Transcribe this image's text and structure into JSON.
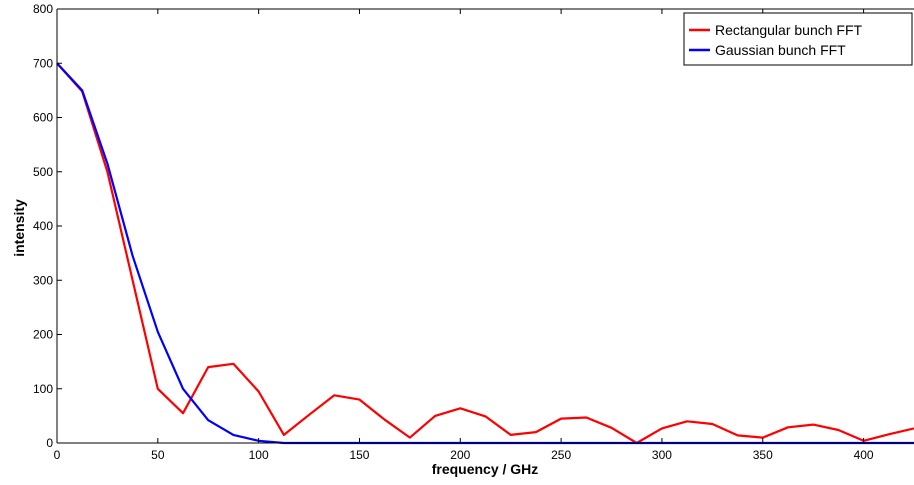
{
  "chart_data": {
    "type": "line",
    "title": "",
    "xlabel": "frequency / GHz",
    "ylabel": "intensity",
    "xlim": [
      0,
      425
    ],
    "ylim": [
      0,
      800
    ],
    "xticks": [
      0,
      50,
      100,
      150,
      200,
      250,
      300,
      350,
      400
    ],
    "yticks": [
      0,
      100,
      200,
      300,
      400,
      500,
      600,
      700,
      800
    ],
    "grid": false,
    "legend": "top-right",
    "series": [
      {
        "name": "Rectangular bunch FFT",
        "color": "#ff0000",
        "x": [
          0,
          12.5,
          25,
          37.5,
          50,
          62.5,
          75,
          87.5,
          100,
          112.5,
          125,
          137.5,
          150,
          162.5,
          175,
          187.5,
          200,
          212.5,
          225,
          237.5,
          250,
          262.5,
          275,
          287.5,
          300,
          312.5,
          325,
          337.5,
          350,
          362.5,
          375,
          387.5,
          400,
          412.5,
          425
        ],
        "values": [
          700,
          648,
          500,
          300,
          100,
          55,
          140,
          146,
          95,
          15,
          52,
          88,
          80,
          43,
          10,
          50,
          64,
          49,
          15,
          20,
          45,
          47,
          28,
          0,
          27,
          40,
          35,
          14,
          10,
          29,
          34,
          24,
          4,
          16,
          27
        ]
      },
      {
        "name": "Gaussian bunch FFT",
        "color": "#0000ff",
        "x": [
          0,
          12.5,
          25,
          37.5,
          50,
          62.5,
          75,
          87.5,
          100,
          112.5,
          125,
          150,
          200,
          250,
          300,
          350,
          400,
          425
        ],
        "values": [
          700,
          650,
          515,
          345,
          205,
          100,
          42,
          15,
          4,
          0,
          0,
          0,
          0,
          0,
          0,
          0,
          0,
          0
        ]
      }
    ]
  }
}
